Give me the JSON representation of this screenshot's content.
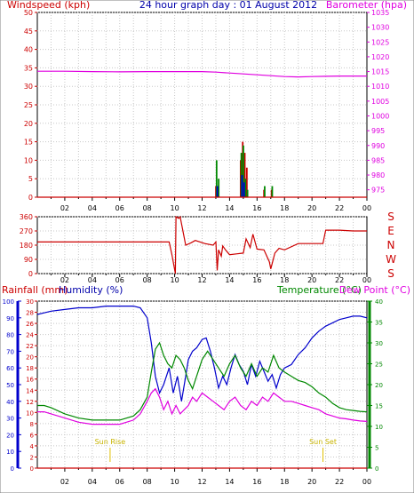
{
  "chart_data": [
    {
      "type": "bar",
      "title": "24 hour graph day : 01 August 2012",
      "ylabel": "Windspeed (kph)",
      "ylabel_right": "Barometer (hpa)",
      "ylim": [
        0,
        50
      ],
      "ylim_right": [
        972.5,
        1035
      ],
      "yticks": [
        0,
        5,
        10,
        15,
        20,
        25,
        30,
        35,
        40,
        45,
        50
      ],
      "yticks_right": [
        975,
        980,
        985,
        990,
        995,
        1000,
        1005,
        1010,
        1015,
        1020,
        1025,
        1030,
        1035
      ],
      "xticks": [
        "02",
        "04",
        "06",
        "08",
        "10",
        "12",
        "14",
        "16",
        "18",
        "20",
        "22",
        "00"
      ],
      "grid": true,
      "series": [
        {
          "name": "Barometer (hpa)",
          "type": "line",
          "color": "#e000e0",
          "x": [
            0,
            2,
            4,
            6,
            8,
            10,
            12,
            13,
            14,
            15,
            16,
            17,
            18,
            19,
            20,
            21,
            22,
            23,
            24
          ],
          "values": [
            1015.1,
            1015.1,
            1015.0,
            1014.9,
            1015.0,
            1015.0,
            1015.0,
            1014.8,
            1014.5,
            1014.2,
            1013.9,
            1013.6,
            1013.3,
            1013.2,
            1013.3,
            1013.4,
            1013.5,
            1013.5,
            1013.5
          ]
        },
        {
          "name": "Gust",
          "type": "bar",
          "color": "#cc0000",
          "x": [
            13.0,
            13.15,
            14.8,
            14.95,
            15.1,
            15.25,
            16.5,
            17.05
          ],
          "values": [
            3,
            3,
            10,
            15,
            12,
            8,
            2,
            2
          ]
        },
        {
          "name": "Average",
          "type": "bar",
          "color": "#008800",
          "x": [
            13.05,
            13.2,
            14.85,
            15.0,
            15.15,
            15.3,
            16.55,
            17.1
          ],
          "values": [
            10,
            5,
            12,
            14,
            5,
            2,
            3,
            3
          ]
        },
        {
          "name": "Average (low)",
          "type": "bar",
          "color": "#0000cc",
          "x": [
            13.1,
            14.9,
            15.05
          ],
          "values": [
            3,
            6,
            4
          ]
        }
      ]
    },
    {
      "type": "line",
      "ylabel": "",
      "ylim": [
        0,
        360
      ],
      "yticks": [
        0,
        90,
        180,
        270,
        360
      ],
      "compass_labels": [
        "S",
        "E",
        "N",
        "W",
        "S"
      ],
      "xticks": [
        "02",
        "04",
        "06",
        "08",
        "10",
        "12",
        "14",
        "16",
        "18",
        "20",
        "22",
        "00"
      ],
      "grid": true,
      "series": [
        {
          "name": "Wind direction",
          "color": "#cc0000",
          "x": [
            0,
            9.6,
            9.8,
            10.05,
            10.1,
            10.3,
            10.4,
            10.6,
            10.8,
            11.2,
            11.5,
            12.2,
            12.8,
            13.0,
            13.1,
            13.2,
            13.4,
            13.5,
            13.7,
            14.0,
            14.5,
            15.0,
            15.2,
            15.5,
            15.7,
            16.0,
            16.5,
            16.9,
            17.0,
            17.3,
            17.6,
            18.0,
            19.0,
            20.8,
            21.0,
            22.0,
            23.0,
            24.0
          ],
          "values": [
            200,
            200,
            120,
            0,
            360,
            350,
            360,
            270,
            180,
            195,
            210,
            190,
            180,
            200,
            20,
            150,
            110,
            175,
            150,
            120,
            125,
            130,
            220,
            165,
            250,
            155,
            150,
            75,
            30,
            130,
            160,
            150,
            190,
            190,
            275,
            275,
            270,
            270
          ]
        }
      ]
    },
    {
      "type": "line",
      "ylabel": "Rainfall (mm)",
      "ylabel2": "Humidity (%)",
      "ylabel_right": "Temperature (°C)",
      "ylabel_right2": "Dew Point (°C)",
      "ylim_rain": [
        0,
        30
      ],
      "ylim_humidity": [
        0,
        100
      ],
      "ylim_temp": [
        0,
        40
      ],
      "yticks_rain": [
        0,
        2,
        4,
        6,
        8,
        10,
        12,
        14,
        16,
        18,
        20,
        22,
        24,
        26,
        28,
        30
      ],
      "yticks_humidity": [
        0,
        10,
        20,
        30,
        40,
        50,
        60,
        70,
        80,
        90,
        100
      ],
      "yticks_temp": [
        0,
        5,
        10,
        15,
        20,
        25,
        30,
        35,
        40
      ],
      "xticks": [
        "02",
        "04",
        "06",
        "08",
        "10",
        "12",
        "14",
        "16",
        "18",
        "20",
        "22",
        "00"
      ],
      "annotations": [
        "Sun Rise",
        "Sun Set"
      ],
      "sunrise_hour": 5.3,
      "sunset_hour": 20.8,
      "grid": true,
      "series": [
        {
          "name": "Humidity (%)",
          "color": "#0000cc",
          "axis": "humidity",
          "x": [
            0,
            0.5,
            1,
            2,
            3,
            4,
            5,
            6,
            7,
            7.5,
            8,
            8.3,
            8.6,
            8.9,
            9.2,
            9.6,
            9.9,
            10.2,
            10.5,
            10.8,
            11.0,
            11.3,
            11.6,
            12.0,
            12.3,
            12.6,
            12.9,
            13.2,
            13.5,
            13.8,
            14.1,
            14.4,
            14.7,
            15.0,
            15.3,
            15.6,
            15.9,
            16.2,
            16.5,
            16.8,
            17.1,
            17.4,
            17.7,
            18.0,
            18.5,
            19.0,
            19.5,
            20.0,
            20.5,
            21.0,
            21.5,
            22.0,
            22.5,
            23.0,
            23.5,
            24.0
          ],
          "values": [
            92,
            93,
            94,
            95,
            96,
            96,
            97,
            97,
            97,
            96,
            90,
            75,
            55,
            45,
            50,
            60,
            45,
            55,
            40,
            55,
            65,
            70,
            72,
            77,
            78,
            70,
            60,
            48,
            55,
            50,
            60,
            68,
            62,
            58,
            50,
            62,
            55,
            64,
            58,
            52,
            56,
            48,
            56,
            60,
            62,
            68,
            72,
            78,
            82,
            85,
            87,
            89,
            90,
            91,
            91,
            90
          ]
        },
        {
          "name": "Temperature (°C)",
          "color": "#008800",
          "axis": "temp",
          "x": [
            0,
            0.5,
            1,
            2,
            3,
            4,
            5,
            6,
            7,
            7.5,
            8,
            8.3,
            8.6,
            8.9,
            9.2,
            9.5,
            9.8,
            10.1,
            10.4,
            10.7,
            11.0,
            11.3,
            11.6,
            12.0,
            12.4,
            12.8,
            13.2,
            13.6,
            14.0,
            14.4,
            14.8,
            15.2,
            15.6,
            16.0,
            16.4,
            16.8,
            17.2,
            17.6,
            18.0,
            18.5,
            19.0,
            19.5,
            20.0,
            20.5,
            21.0,
            21.5,
            22.0,
            22.5,
            23.0,
            23.5,
            24.0
          ],
          "values": [
            15,
            15,
            14.5,
            13,
            12,
            11.5,
            11.5,
            11.5,
            12.5,
            14,
            17,
            23,
            28.5,
            30,
            27,
            25,
            24,
            27,
            26,
            24,
            21,
            19,
            22,
            26,
            28,
            26,
            24,
            22,
            25,
            27,
            24,
            22,
            25,
            22,
            24,
            23,
            27,
            24,
            23,
            22,
            21,
            20.5,
            19.5,
            18,
            17,
            15.5,
            14.5,
            14,
            13.8,
            13.6,
            13.5
          ]
        },
        {
          "name": "Dew Point (°C)",
          "color": "#e000e0",
          "axis": "temp",
          "x": [
            0,
            0.5,
            1,
            2,
            3,
            4,
            5,
            6,
            7,
            7.5,
            8,
            8.3,
            8.6,
            8.9,
            9.2,
            9.5,
            9.8,
            10.1,
            10.4,
            10.7,
            11.0,
            11.3,
            11.6,
            12.0,
            12.4,
            12.8,
            13.2,
            13.6,
            14.0,
            14.4,
            14.8,
            15.2,
            15.6,
            16.0,
            16.4,
            16.8,
            17.2,
            17.6,
            18.0,
            18.5,
            19.0,
            19.5,
            20.0,
            20.5,
            21.0,
            21.5,
            22.0,
            22.5,
            23.0,
            23.5,
            24.0
          ],
          "values": [
            13.5,
            13.5,
            13,
            12,
            11,
            10.5,
            10.5,
            10.5,
            11.5,
            13,
            16,
            18,
            19,
            17,
            14,
            16,
            13,
            15,
            13,
            14,
            15,
            17,
            16,
            18,
            17,
            16,
            15,
            14,
            16,
            17,
            15,
            14,
            16,
            15,
            17,
            16,
            18,
            17,
            16,
            16,
            15.5,
            15,
            14.5,
            14,
            13,
            12.5,
            12,
            11.8,
            11.5,
            11.3,
            11.2
          ]
        },
        {
          "name": "Rainfall (mm)",
          "color": "#cc0000",
          "axis": "rain",
          "x": [
            0,
            24
          ],
          "values": [
            0,
            0
          ]
        }
      ]
    }
  ]
}
